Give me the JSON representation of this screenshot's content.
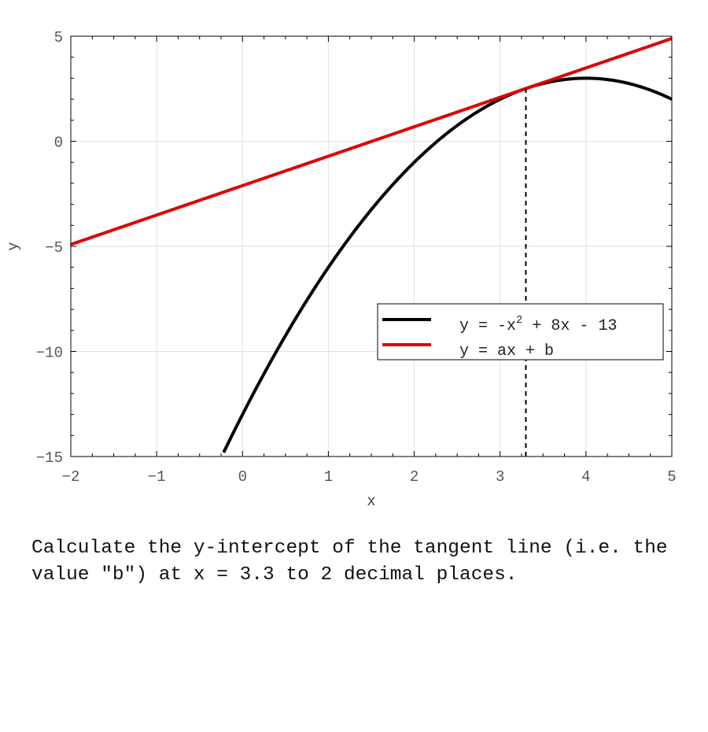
{
  "chart_data": {
    "type": "line",
    "xlabel": "x",
    "ylabel": "y",
    "xlim": [
      -2,
      5
    ],
    "ylim": [
      -15,
      5
    ],
    "x_ticks": [
      -2,
      -1,
      0,
      1,
      2,
      3,
      4,
      5
    ],
    "x_tick_labels": [
      "−2",
      "−1",
      "0",
      "1",
      "2",
      "3",
      "4",
      "5"
    ],
    "y_ticks": [
      5,
      0,
      -5,
      -10,
      -15
    ],
    "y_tick_labels": [
      "5",
      "0",
      "−5",
      "−10",
      "−15"
    ],
    "grid": true,
    "legend_position": "right",
    "series": [
      {
        "name": "y = -x^2 + 8x - 13",
        "legend_label": {
          "prefix": "y = -x",
          "superscript": "2",
          "suffix": " + 8x - 13"
        },
        "function": {
          "kind": "quadratic",
          "a": -1,
          "b": 8,
          "c": -13
        },
        "x_start": -0.22,
        "x_end": 5,
        "color": "#000000"
      },
      {
        "name": "y = ax + b",
        "legend_label": {
          "prefix": "y = ax + b",
          "superscript": "",
          "suffix": ""
        },
        "function": {
          "kind": "linear",
          "slope": 1.4,
          "intercept": -2.11
        },
        "x_start": -2,
        "x_end": 5,
        "color": "#e00000"
      }
    ],
    "reference_line": {
      "orientation": "vertical",
      "x": 3.3,
      "style": "dashed",
      "color": "#000000"
    }
  },
  "question": {
    "text": "Calculate the y-intercept of the tangent line (i.e. the value \"b\") at x = 3.3 to 2 decimal places."
  }
}
